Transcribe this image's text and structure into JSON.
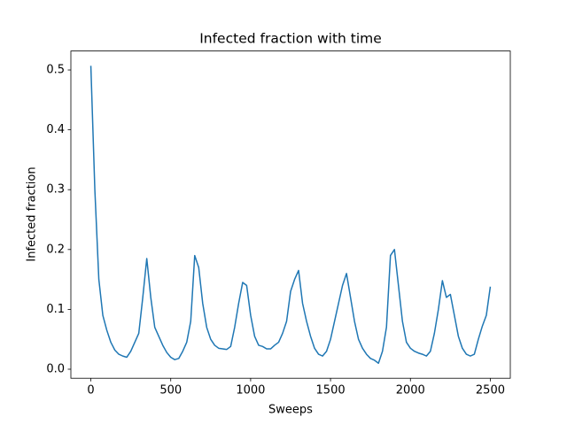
{
  "chart_data": {
    "type": "line",
    "title": "Infected fraction with time",
    "x_label": "Sweeps",
    "y_label": "Infected fraction",
    "xlim": [
      -125,
      2625
    ],
    "xticks": [
      0,
      500,
      1000,
      1500,
      2000,
      2500
    ],
    "ylim": [
      -0.0151,
      0.5317
    ],
    "yticks": [
      {
        "value": 0,
        "label": "0.0"
      },
      0.1,
      0.2,
      0.3,
      0.4,
      0.5
    ],
    "x": [
      0,
      25,
      50,
      75,
      100,
      125,
      150,
      175,
      200,
      225,
      250,
      275,
      300,
      325,
      350,
      375,
      400,
      425,
      450,
      475,
      500,
      525,
      550,
      575,
      600,
      625,
      650,
      675,
      700,
      725,
      750,
      775,
      800,
      825,
      850,
      875,
      900,
      925,
      950,
      975,
      1000,
      1025,
      1050,
      1075,
      1100,
      1125,
      1150,
      1175,
      1200,
      1225,
      1250,
      1275,
      1300,
      1325,
      1350,
      1375,
      1400,
      1425,
      1450,
      1475,
      1500,
      1525,
      1550,
      1575,
      1600,
      1625,
      1650,
      1675,
      1700,
      1725,
      1750,
      1775,
      1800,
      1825,
      1850,
      1875,
      1900,
      1925,
      1950,
      1975,
      2000,
      2025,
      2050,
      2075,
      2100,
      2125,
      2150,
      2175,
      2200,
      2225,
      2250,
      2275,
      2300,
      2325,
      2350,
      2375,
      2400,
      2425,
      2450,
      2475,
      2500
    ],
    "series": [
      {
        "name": "Infected fraction",
        "color": "#1f77b4",
        "values": [
          0.507,
          0.3,
          0.15,
          0.09,
          0.065,
          0.045,
          0.032,
          0.025,
          0.022,
          0.02,
          0.03,
          0.045,
          0.06,
          0.12,
          0.185,
          0.12,
          0.07,
          0.055,
          0.04,
          0.028,
          0.02,
          0.016,
          0.018,
          0.03,
          0.045,
          0.08,
          0.19,
          0.17,
          0.11,
          0.07,
          0.05,
          0.04,
          0.035,
          0.034,
          0.033,
          0.038,
          0.07,
          0.11,
          0.145,
          0.14,
          0.09,
          0.055,
          0.04,
          0.038,
          0.034,
          0.034,
          0.04,
          0.045,
          0.06,
          0.08,
          0.13,
          0.15,
          0.165,
          0.11,
          0.08,
          0.055,
          0.035,
          0.025,
          0.022,
          0.03,
          0.05,
          0.08,
          0.11,
          0.14,
          0.16,
          0.12,
          0.08,
          0.05,
          0.035,
          0.025,
          0.018,
          0.015,
          0.01,
          0.03,
          0.07,
          0.19,
          0.2,
          0.14,
          0.08,
          0.045,
          0.035,
          0.03,
          0.027,
          0.025,
          0.022,
          0.03,
          0.06,
          0.1,
          0.148,
          0.12,
          0.125,
          0.09,
          0.055,
          0.035,
          0.025,
          0.022,
          0.025,
          0.05,
          0.072,
          0.09,
          0.138
        ]
      }
    ]
  }
}
